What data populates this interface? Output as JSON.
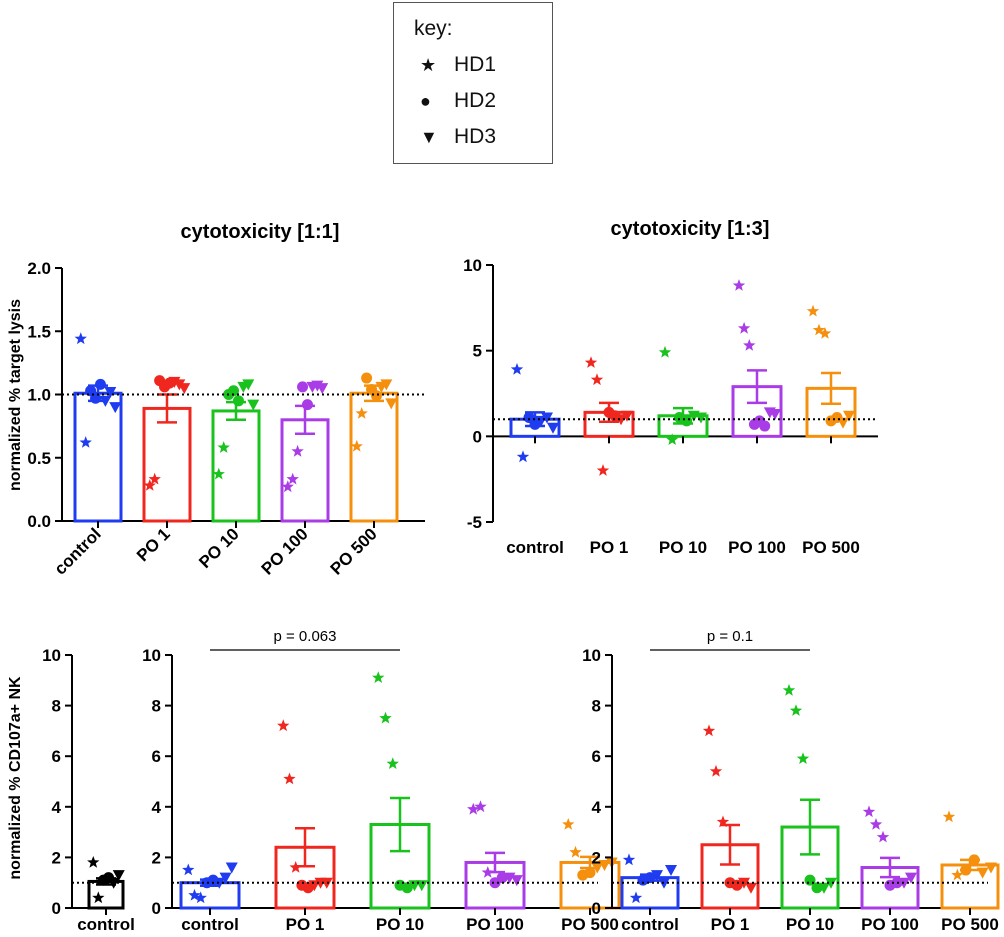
{
  "key": {
    "title": "key:",
    "items": [
      {
        "symbol": "★",
        "label": "HD1"
      },
      {
        "symbol": "●",
        "label": "HD2"
      },
      {
        "symbol": "▼",
        "label": "HD3"
      }
    ]
  },
  "colors": {
    "control": "#1f3cf0",
    "PO 1": "#f0271f",
    "PO 10": "#19c21d",
    "PO 100": "#a93ce6",
    "PO 500": "#f5900f",
    "axis": "#000000"
  },
  "chart_data": [
    {
      "id": "c1",
      "type": "bar",
      "title": "cytotoxicity [1:1]",
      "ylabel": "normalized % target lysis",
      "ylim": [
        0,
        2.0
      ],
      "yticks": [
        "0.0",
        "0.5",
        "1.0",
        "1.5",
        "2.0"
      ],
      "reference_line": 1.0,
      "categories": [
        "control",
        "PO 1",
        "PO 10",
        "PO 100",
        "PO 500"
      ],
      "values": [
        1.01,
        0.89,
        0.87,
        0.8,
        1.01
      ],
      "sem": [
        0.06,
        0.11,
        0.07,
        0.11,
        0.06
      ],
      "points": [
        [
          {
            "d": "HD1",
            "v": 1.44
          },
          {
            "d": "HD1",
            "v": 0.62
          },
          {
            "d": "HD2",
            "v": 1.03
          },
          {
            "d": "HD2",
            "v": 0.97
          },
          {
            "d": "HD2",
            "v": 1.08
          },
          {
            "d": "HD3",
            "v": 0.95
          },
          {
            "d": "HD3",
            "v": 1.02
          },
          {
            "d": "HD3",
            "v": 0.9
          }
        ],
        [
          {
            "d": "HD1",
            "v": 0.28
          },
          {
            "d": "HD1",
            "v": 0.33
          },
          {
            "d": "HD2",
            "v": 1.11
          },
          {
            "d": "HD2",
            "v": 1.06
          },
          {
            "d": "HD2",
            "v": 1.09
          },
          {
            "d": "HD3",
            "v": 1.1
          },
          {
            "d": "HD3",
            "v": 1.08
          },
          {
            "d": "HD3",
            "v": 1.05
          }
        ],
        [
          {
            "d": "HD1",
            "v": 0.37
          },
          {
            "d": "HD1",
            "v": 0.58
          },
          {
            "d": "HD2",
            "v": 1.0
          },
          {
            "d": "HD2",
            "v": 1.03
          },
          {
            "d": "HD2",
            "v": 0.95
          },
          {
            "d": "HD3",
            "v": 1.06
          },
          {
            "d": "HD3",
            "v": 1.08
          },
          {
            "d": "HD3",
            "v": 0.92
          }
        ],
        [
          {
            "d": "HD1",
            "v": 0.27
          },
          {
            "d": "HD1",
            "v": 0.33
          },
          {
            "d": "HD1",
            "v": 0.55
          },
          {
            "d": "HD2",
            "v": 1.06
          },
          {
            "d": "HD2",
            "v": 0.92
          },
          {
            "d": "HD3",
            "v": 1.06
          },
          {
            "d": "HD3",
            "v": 1.07
          },
          {
            "d": "HD3",
            "v": 1.05
          }
        ],
        [
          {
            "d": "HD1",
            "v": 0.59
          },
          {
            "d": "HD1",
            "v": 0.85
          },
          {
            "d": "HD2",
            "v": 1.13
          },
          {
            "d": "HD2",
            "v": 1.04
          },
          {
            "d": "HD2",
            "v": 0.99
          },
          {
            "d": "HD3",
            "v": 1.06
          },
          {
            "d": "HD3",
            "v": 1.08
          },
          {
            "d": "HD3",
            "v": 0.93
          }
        ]
      ]
    },
    {
      "id": "c2",
      "type": "bar",
      "title": "cytotoxicity [1:3]",
      "ylabel": "",
      "ylim": [
        -5,
        10
      ],
      "yticks": [
        "-5",
        "0",
        "5",
        "10"
      ],
      "reference_line": 1.0,
      "categories": [
        "control",
        "PO 1",
        "PO 10",
        "PO 100",
        "PO 500"
      ],
      "values": [
        1.0,
        1.4,
        1.2,
        2.9,
        2.8
      ],
      "sem": [
        0.4,
        0.55,
        0.45,
        0.95,
        0.9
      ],
      "points": [
        [
          {
            "d": "HD1",
            "v": 3.9
          },
          {
            "d": "HD1",
            "v": -1.2
          },
          {
            "d": "HD2",
            "v": 1.1
          },
          {
            "d": "HD2",
            "v": 0.7
          },
          {
            "d": "HD3",
            "v": 0.9
          },
          {
            "d": "HD3",
            "v": 1.1
          },
          {
            "d": "HD3",
            "v": 0.5
          }
        ],
        [
          {
            "d": "HD1",
            "v": 4.3
          },
          {
            "d": "HD1",
            "v": 3.3
          },
          {
            "d": "HD1",
            "v": -2.0
          },
          {
            "d": "HD2",
            "v": 1.4
          },
          {
            "d": "HD2",
            "v": 1.2
          },
          {
            "d": "HD3",
            "v": 1.0
          },
          {
            "d": "HD3",
            "v": 1.2
          }
        ],
        [
          {
            "d": "HD1",
            "v": 4.9
          },
          {
            "d": "HD1",
            "v": -0.2
          },
          {
            "d": "HD2",
            "v": 1.1
          },
          {
            "d": "HD2",
            "v": 0.9
          },
          {
            "d": "HD3",
            "v": 1.2
          },
          {
            "d": "HD3",
            "v": 1.1
          }
        ],
        [
          {
            "d": "HD1",
            "v": 8.8
          },
          {
            "d": "HD1",
            "v": 6.3
          },
          {
            "d": "HD1",
            "v": 5.3
          },
          {
            "d": "HD2",
            "v": 0.7
          },
          {
            "d": "HD2",
            "v": 0.9
          },
          {
            "d": "HD2",
            "v": 0.6
          },
          {
            "d": "HD3",
            "v": 1.4
          },
          {
            "d": "HD3",
            "v": 1.3
          }
        ],
        [
          {
            "d": "HD1",
            "v": 7.3
          },
          {
            "d": "HD1",
            "v": 6.2
          },
          {
            "d": "HD1",
            "v": 6.0
          },
          {
            "d": "HD2",
            "v": 0.9
          },
          {
            "d": "HD2",
            "v": 1.1
          },
          {
            "d": "HD3",
            "v": 0.8
          },
          {
            "d": "HD3",
            "v": 1.2
          }
        ]
      ]
    },
    {
      "id": "c3",
      "type": "bar",
      "title": "",
      "ylabel": "normalized % CD107a+ NK",
      "ylim": [
        0,
        10
      ],
      "yticks": [
        "0",
        "2",
        "4",
        "6",
        "8",
        "10"
      ],
      "reference_line": 1.0,
      "categories": [
        "control"
      ],
      "values": [
        1.05
      ],
      "sem": [
        0.12
      ],
      "points": [
        [
          {
            "d": "HD1",
            "v": 1.8
          },
          {
            "d": "HD1",
            "v": 0.4
          },
          {
            "d": "HD2",
            "v": 1.1
          },
          {
            "d": "HD2",
            "v": 1.2
          },
          {
            "d": "HD3",
            "v": 1.0
          },
          {
            "d": "HD3",
            "v": 1.3
          }
        ]
      ]
    },
    {
      "id": "c4",
      "type": "bar",
      "title": "",
      "ylabel": "",
      "ylim": [
        0,
        10
      ],
      "yticks": [
        "0",
        "2",
        "4",
        "6",
        "8",
        "10"
      ],
      "reference_line": 1.0,
      "annotation": {
        "text": "p = 0.063",
        "from": 0,
        "to": 2
      },
      "categories": [
        "control",
        "PO 1",
        "PO 10",
        "PO 100",
        "PO 500"
      ],
      "values": [
        1.0,
        2.4,
        3.3,
        1.8,
        1.8
      ],
      "sem": [
        0.12,
        0.75,
        1.05,
        0.38,
        0.22
      ],
      "points": [
        [
          {
            "d": "HD1",
            "v": 1.5
          },
          {
            "d": "HD1",
            "v": 0.5
          },
          {
            "d": "HD1",
            "v": 0.4
          },
          {
            "d": "HD2",
            "v": 1.0
          },
          {
            "d": "HD2",
            "v": 1.1
          },
          {
            "d": "HD3",
            "v": 1.0
          },
          {
            "d": "HD3",
            "v": 1.2
          },
          {
            "d": "HD3",
            "v": 1.6
          }
        ],
        [
          {
            "d": "HD1",
            "v": 7.2
          },
          {
            "d": "HD1",
            "v": 5.1
          },
          {
            "d": "HD1",
            "v": 1.6
          },
          {
            "d": "HD2",
            "v": 0.9
          },
          {
            "d": "HD2",
            "v": 0.8
          },
          {
            "d": "HD3",
            "v": 0.9
          },
          {
            "d": "HD3",
            "v": 1.0
          },
          {
            "d": "HD3",
            "v": 1.0
          }
        ],
        [
          {
            "d": "HD1",
            "v": 9.1
          },
          {
            "d": "HD1",
            "v": 7.5
          },
          {
            "d": "HD1",
            "v": 5.7
          },
          {
            "d": "HD2",
            "v": 0.9
          },
          {
            "d": "HD2",
            "v": 0.8
          },
          {
            "d": "HD3",
            "v": 0.9
          },
          {
            "d": "HD3",
            "v": 0.9
          }
        ],
        [
          {
            "d": "HD1",
            "v": 3.9
          },
          {
            "d": "HD1",
            "v": 4.0
          },
          {
            "d": "HD1",
            "v": 1.4
          },
          {
            "d": "HD2",
            "v": 1.0
          },
          {
            "d": "HD2",
            "v": 1.2
          },
          {
            "d": "HD3",
            "v": 1.2
          },
          {
            "d": "HD3",
            "v": 1.1
          }
        ],
        [
          {
            "d": "HD1",
            "v": 3.3
          },
          {
            "d": "HD1",
            "v": 2.2
          },
          {
            "d": "HD2",
            "v": 1.3
          },
          {
            "d": "HD2",
            "v": 1.4
          },
          {
            "d": "HD3",
            "v": 1.6
          },
          {
            "d": "HD3",
            "v": 1.7
          },
          {
            "d": "HD3",
            "v": 1.8
          }
        ]
      ]
    },
    {
      "id": "c5",
      "type": "bar",
      "title": "",
      "ylabel": "",
      "ylim": [
        0,
        10
      ],
      "yticks": [
        "0",
        "2",
        "4",
        "6",
        "8",
        "10"
      ],
      "reference_line": 1.0,
      "annotation": {
        "text": "p = 0.1",
        "from": 0,
        "to": 2
      },
      "categories": [
        "control",
        "PO 1",
        "PO 10",
        "PO 100",
        "PO 500"
      ],
      "values": [
        1.2,
        2.5,
        3.2,
        1.6,
        1.7
      ],
      "sem": [
        0.12,
        0.78,
        1.08,
        0.38,
        0.2
      ],
      "points": [
        [
          {
            "d": "HD1",
            "v": 1.9
          },
          {
            "d": "HD1",
            "v": 0.4
          },
          {
            "d": "HD2",
            "v": 1.1
          },
          {
            "d": "HD2",
            "v": 1.2
          },
          {
            "d": "HD3",
            "v": 1.3
          },
          {
            "d": "HD3",
            "v": 1.0
          },
          {
            "d": "HD3",
            "v": 1.5
          }
        ],
        [
          {
            "d": "HD1",
            "v": 7.0
          },
          {
            "d": "HD1",
            "v": 5.4
          },
          {
            "d": "HD1",
            "v": 3.4
          },
          {
            "d": "HD2",
            "v": 1.0
          },
          {
            "d": "HD2",
            "v": 0.9
          },
          {
            "d": "HD3",
            "v": 1.0
          },
          {
            "d": "HD3",
            "v": 0.8
          }
        ],
        [
          {
            "d": "HD1",
            "v": 8.6
          },
          {
            "d": "HD1",
            "v": 7.8
          },
          {
            "d": "HD1",
            "v": 5.9
          },
          {
            "d": "HD2",
            "v": 1.1
          },
          {
            "d": "HD2",
            "v": 0.8
          },
          {
            "d": "HD3",
            "v": 0.8
          },
          {
            "d": "HD3",
            "v": 1.0
          }
        ],
        [
          {
            "d": "HD1",
            "v": 3.8
          },
          {
            "d": "HD1",
            "v": 3.3
          },
          {
            "d": "HD1",
            "v": 2.8
          },
          {
            "d": "HD2",
            "v": 0.9
          },
          {
            "d": "HD2",
            "v": 1.0
          },
          {
            "d": "HD3",
            "v": 1.0
          },
          {
            "d": "HD3",
            "v": 1.2
          }
        ],
        [
          {
            "d": "HD1",
            "v": 3.6
          },
          {
            "d": "HD1",
            "v": 1.3
          },
          {
            "d": "HD2",
            "v": 1.5
          },
          {
            "d": "HD2",
            "v": 1.9
          },
          {
            "d": "HD3",
            "v": 1.4
          },
          {
            "d": "HD3",
            "v": 1.6
          }
        ]
      ]
    }
  ]
}
